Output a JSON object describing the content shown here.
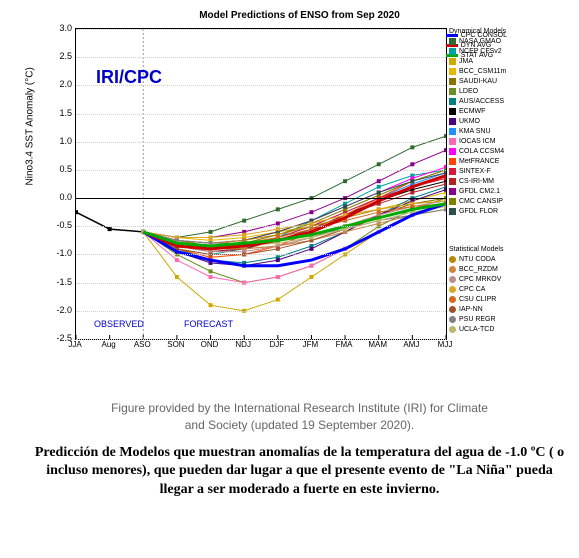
{
  "chart": {
    "title": "Model Predictions of ENSO from Sep 2020",
    "logo": "IRI/CPC",
    "ylabel": "Nino3.4 SST Anomaly (°C)",
    "ylim": [
      -2.5,
      3.0
    ],
    "yticks": [
      -2.5,
      -2.0,
      -1.5,
      -1.0,
      -0.5,
      0.0,
      0.5,
      1.0,
      1.5,
      2.0,
      2.5,
      3.0
    ],
    "xcats": [
      "JJA",
      "Aug",
      "ASO",
      "SON",
      "OND",
      "NDJ",
      "DJF",
      "JFM",
      "FMA",
      "MAM",
      "AMJ",
      "MJJ"
    ],
    "observed_label": "OBSERVED",
    "forecast_label": "FORECAST",
    "grid_color": "#cccccc",
    "background_color": "#ffffff",
    "main_legend": [
      {
        "label": "CPC CONSOL",
        "color": "#0000ff",
        "width": 3
      },
      {
        "label": "DYN AVG",
        "color": "#cc0000",
        "width": 3
      },
      {
        "label": "STAT AVG",
        "color": "#00aa00",
        "width": 3
      }
    ],
    "dynamical_title": "Dynamical Models",
    "dynamical_models": [
      {
        "label": "NASA GMAO",
        "color": "#2e6b2e"
      },
      {
        "label": "NCEP CFSv2",
        "color": "#00a0a0"
      },
      {
        "label": "JMA",
        "color": "#ccaa00"
      },
      {
        "label": "BCC_CSM11m",
        "color": "#e6b800"
      },
      {
        "label": "SAUDI-KAU",
        "color": "#8b7500"
      },
      {
        "label": "LDEO",
        "color": "#6b8e23"
      },
      {
        "label": "AUS/ACCESS",
        "color": "#008080"
      },
      {
        "label": "ECMWF",
        "color": "#000000"
      },
      {
        "label": "UKMO",
        "color": "#4b0082"
      },
      {
        "label": "KMA SNU",
        "color": "#1e90ff"
      },
      {
        "label": "IOCAS ICM",
        "color": "#ff69b4"
      },
      {
        "label": "COLA CCSM4",
        "color": "#ff00ff"
      },
      {
        "label": "MetFRANCE",
        "color": "#ff4500"
      },
      {
        "label": "SINTEX-F",
        "color": "#dc143c"
      },
      {
        "label": "CS-IRI-MM",
        "color": "#b22222"
      },
      {
        "label": "GFDL CM2.1",
        "color": "#8b008b"
      },
      {
        "label": "CMC CANSIP",
        "color": "#808000"
      },
      {
        "label": "GFDL FLOR",
        "color": "#2f4f4f"
      }
    ],
    "statistical_title": "Statistical Models",
    "statistical_models": [
      {
        "label": "NTU CODA",
        "color": "#b8860b"
      },
      {
        "label": "BCC_RZDM",
        "color": "#cd853f"
      },
      {
        "label": "CPC MRKOV",
        "color": "#bc8f8f"
      },
      {
        "label": "CPC CA",
        "color": "#daa520"
      },
      {
        "label": "CSU CLIPR",
        "color": "#d2691e"
      },
      {
        "label": "IAP-NN",
        "color": "#a0522d"
      },
      {
        "label": "PSU REGR",
        "color": "#808080"
      },
      {
        "label": "UCLA-TCD",
        "color": "#bdb76b"
      }
    ],
    "observed_series": {
      "color": "#000000",
      "x": [
        0,
        1,
        2
      ],
      "y": [
        -0.25,
        -0.55,
        -0.6
      ]
    },
    "main_series": [
      {
        "color": "#0000ff",
        "width": 3,
        "x": [
          2,
          3,
          4,
          5,
          6,
          7,
          8,
          9,
          10,
          11
        ],
        "y": [
          -0.6,
          -0.95,
          -1.1,
          -1.2,
          -1.2,
          -1.1,
          -0.9,
          -0.6,
          -0.3,
          -0.1
        ]
      },
      {
        "color": "#cc0000",
        "width": 3,
        "x": [
          2,
          3,
          4,
          5,
          6,
          7,
          8,
          9,
          10,
          11
        ],
        "y": [
          -0.6,
          -0.85,
          -0.9,
          -0.85,
          -0.75,
          -0.6,
          -0.35,
          -0.05,
          0.2,
          0.4
        ]
      },
      {
        "color": "#00aa00",
        "width": 3,
        "x": [
          2,
          3,
          4,
          5,
          6,
          7,
          8,
          9,
          10,
          11
        ],
        "y": [
          -0.6,
          -0.8,
          -0.85,
          -0.8,
          -0.75,
          -0.65,
          -0.5,
          -0.35,
          -0.2,
          -0.1
        ]
      }
    ],
    "model_series": [
      {
        "color": "#2e6b2e",
        "x": [
          2,
          3,
          4,
          5,
          6,
          7,
          8,
          9,
          10,
          11
        ],
        "y": [
          -0.6,
          -0.7,
          -0.6,
          -0.4,
          -0.2,
          0.0,
          0.3,
          0.6,
          0.9,
          1.1
        ]
      },
      {
        "color": "#00a0a0",
        "x": [
          2,
          3,
          4,
          5,
          6,
          7,
          8,
          9,
          10,
          11
        ],
        "y": [
          -0.6,
          -0.9,
          -1.0,
          -0.9,
          -0.7,
          -0.4,
          -0.1,
          0.2,
          0.4,
          0.5
        ]
      },
      {
        "color": "#ccaa00",
        "x": [
          2,
          3,
          4,
          5,
          6,
          7,
          8,
          9,
          10,
          11
        ],
        "y": [
          -0.6,
          -1.4,
          -1.9,
          -2.0,
          -1.8,
          -1.4,
          -1.0,
          -0.6,
          -0.3,
          -0.1
        ]
      },
      {
        "color": "#e6b800",
        "x": [
          2,
          3,
          4,
          5,
          6,
          7,
          8,
          9,
          10,
          11
        ],
        "y": [
          -0.6,
          -0.7,
          -0.75,
          -0.7,
          -0.6,
          -0.5,
          -0.35,
          -0.2,
          -0.05,
          0.1
        ]
      },
      {
        "color": "#8b7500",
        "x": [
          2,
          3,
          4,
          5,
          6,
          7,
          8,
          9,
          10,
          11
        ],
        "y": [
          -0.6,
          -0.75,
          -0.85,
          -0.9,
          -0.85,
          -0.7,
          -0.5,
          -0.3,
          -0.1,
          0.0
        ]
      },
      {
        "color": "#6b8e23",
        "x": [
          2,
          3,
          4,
          5,
          6,
          7,
          8,
          9,
          10,
          11
        ],
        "y": [
          -0.6,
          -1.0,
          -1.3,
          -1.5,
          -1.4,
          -1.2,
          -0.9,
          -0.5,
          -0.2,
          0.0
        ]
      },
      {
        "color": "#008080",
        "x": [
          2,
          3,
          4,
          5,
          6,
          7,
          8,
          9,
          10,
          11
        ],
        "y": [
          -0.6,
          -0.9,
          -1.1,
          -1.15,
          -1.05,
          -0.85,
          -0.6,
          -0.3,
          0.0,
          0.2
        ]
      },
      {
        "color": "#000000",
        "x": [
          2,
          3,
          4,
          5,
          6,
          7,
          8,
          9,
          10,
          11
        ],
        "y": [
          -0.6,
          -0.85,
          -0.95,
          -0.9,
          -0.75,
          -0.55,
          -0.3,
          -0.05,
          0.15,
          0.3
        ]
      },
      {
        "color": "#4b0082",
        "x": [
          2,
          3,
          4,
          5,
          6,
          7,
          8,
          9,
          10,
          11
        ],
        "y": [
          -0.6,
          -0.95,
          -1.15,
          -1.2,
          -1.1,
          -0.9,
          -0.6,
          -0.3,
          -0.05,
          0.15
        ]
      },
      {
        "color": "#1e90ff",
        "x": [
          2,
          3,
          4,
          5,
          6,
          7,
          8,
          9,
          10,
          11
        ],
        "y": [
          -0.6,
          -0.8,
          -0.9,
          -0.85,
          -0.7,
          -0.5,
          -0.25,
          0.0,
          0.25,
          0.45
        ]
      },
      {
        "color": "#ff69b4",
        "x": [
          2,
          3,
          4,
          5,
          6,
          7,
          8,
          9,
          10,
          11
        ],
        "y": [
          -0.6,
          -1.1,
          -1.4,
          -1.5,
          -1.4,
          -1.2,
          -0.9,
          -0.6,
          -0.3,
          -0.1
        ]
      },
      {
        "color": "#ff00ff",
        "x": [
          2,
          3,
          4,
          5,
          6,
          7,
          8,
          9,
          10,
          11
        ],
        "y": [
          -0.6,
          -0.75,
          -0.8,
          -0.75,
          -0.6,
          -0.4,
          -0.15,
          0.1,
          0.35,
          0.55
        ]
      },
      {
        "color": "#ff4500",
        "x": [
          2,
          3,
          4,
          5,
          6,
          7,
          8,
          9,
          10,
          11
        ],
        "y": [
          -0.6,
          -0.9,
          -1.05,
          -1.0,
          -0.85,
          -0.6,
          -0.3,
          0.0,
          0.3,
          0.5
        ]
      },
      {
        "color": "#dc143c",
        "x": [
          2,
          3,
          4,
          5,
          6,
          7,
          8,
          9,
          10,
          11
        ],
        "y": [
          -0.6,
          -0.8,
          -0.9,
          -0.85,
          -0.7,
          -0.5,
          -0.25,
          0.0,
          0.2,
          0.35
        ]
      },
      {
        "color": "#b22222",
        "x": [
          2,
          3,
          4,
          5,
          6,
          7,
          8,
          9,
          10,
          11
        ],
        "y": [
          -0.6,
          -0.85,
          -0.95,
          -0.9,
          -0.75,
          -0.55,
          -0.3,
          -0.1,
          0.1,
          0.25
        ]
      },
      {
        "color": "#8b008b",
        "x": [
          2,
          3,
          4,
          5,
          6,
          7,
          8,
          9,
          10,
          11
        ],
        "y": [
          -0.6,
          -0.7,
          -0.7,
          -0.6,
          -0.45,
          -0.25,
          0.0,
          0.3,
          0.6,
          0.85
        ]
      },
      {
        "color": "#808000",
        "x": [
          2,
          3,
          4,
          5,
          6,
          7,
          8,
          9,
          10,
          11
        ],
        "y": [
          -0.6,
          -0.8,
          -0.85,
          -0.8,
          -0.65,
          -0.45,
          -0.2,
          0.05,
          0.3,
          0.5
        ]
      },
      {
        "color": "#2f4f4f",
        "x": [
          2,
          3,
          4,
          5,
          6,
          7,
          8,
          9,
          10,
          11
        ],
        "y": [
          -0.6,
          -0.75,
          -0.8,
          -0.75,
          -0.6,
          -0.4,
          -0.15,
          0.1,
          0.3,
          0.45
        ]
      },
      {
        "color": "#b8860b",
        "x": [
          2,
          3,
          4,
          5,
          6,
          7,
          8,
          9,
          10,
          11
        ],
        "y": [
          -0.6,
          -0.75,
          -0.8,
          -0.75,
          -0.65,
          -0.5,
          -0.35,
          -0.2,
          -0.1,
          -0.05
        ]
      },
      {
        "color": "#cd853f",
        "x": [
          2,
          3,
          4,
          5,
          6,
          7,
          8,
          9,
          10,
          11
        ],
        "y": [
          -0.6,
          -0.8,
          -0.9,
          -0.9,
          -0.85,
          -0.75,
          -0.6,
          -0.45,
          -0.3,
          -0.2
        ]
      },
      {
        "color": "#bc8f8f",
        "x": [
          2,
          3,
          4,
          5,
          6,
          7,
          8,
          9,
          10,
          11
        ],
        "y": [
          -0.6,
          -0.85,
          -0.95,
          -0.95,
          -0.85,
          -0.7,
          -0.5,
          -0.3,
          -0.15,
          -0.05
        ]
      },
      {
        "color": "#daa520",
        "x": [
          2,
          3,
          4,
          5,
          6,
          7,
          8,
          9,
          10,
          11
        ],
        "y": [
          -0.6,
          -0.7,
          -0.7,
          -0.65,
          -0.55,
          -0.45,
          -0.3,
          -0.2,
          -0.1,
          -0.05
        ]
      },
      {
        "color": "#d2691e",
        "x": [
          2,
          3,
          4,
          5,
          6,
          7,
          8,
          9,
          10,
          11
        ],
        "y": [
          -0.6,
          -0.8,
          -0.85,
          -0.8,
          -0.7,
          -0.55,
          -0.4,
          -0.25,
          -0.15,
          -0.1
        ]
      },
      {
        "color": "#a0522d",
        "x": [
          2,
          3,
          4,
          5,
          6,
          7,
          8,
          9,
          10,
          11
        ],
        "y": [
          -0.6,
          -0.9,
          -1.0,
          -1.0,
          -0.9,
          -0.75,
          -0.55,
          -0.35,
          -0.2,
          -0.1
        ]
      },
      {
        "color": "#808080",
        "x": [
          2,
          3,
          4,
          5,
          6,
          7,
          8,
          9,
          10,
          11
        ],
        "y": [
          -0.6,
          -0.75,
          -0.8,
          -0.8,
          -0.75,
          -0.65,
          -0.55,
          -0.4,
          -0.3,
          -0.2
        ]
      },
      {
        "color": "#bdb76b",
        "x": [
          2,
          3,
          4,
          5,
          6,
          7,
          8,
          9,
          10,
          11
        ],
        "y": [
          -0.6,
          -0.8,
          -0.85,
          -0.85,
          -0.8,
          -0.7,
          -0.55,
          -0.4,
          -0.25,
          -0.15
        ]
      }
    ]
  },
  "caption": "Figure provided by the International Research Institute (IRI) for Climate and Society (updated 19 September 2020).",
  "description": "Predicción de Modelos que muestran anomalías de la temperatura del agua de -1.0 ºC ( o incluso menores), que pueden dar lugar a que el presente evento de \"La Niña\" pueda llegar a ser moderado a fuerte en este invierno."
}
